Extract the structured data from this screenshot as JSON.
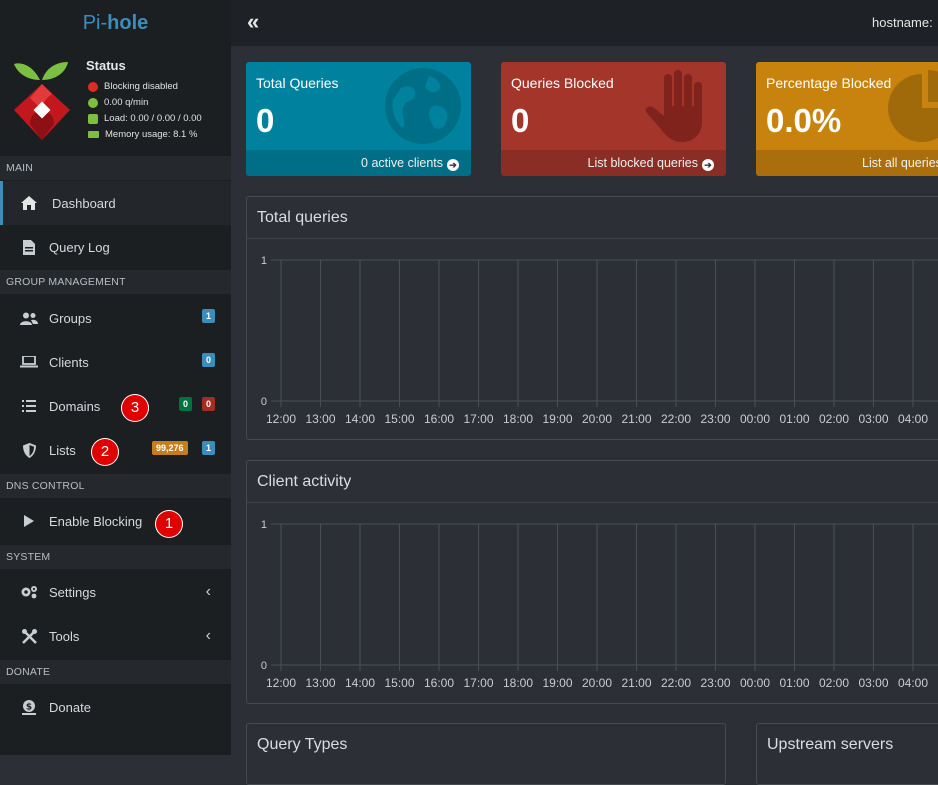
{
  "brand": {
    "prefix": "Pi-",
    "suffix": "hole"
  },
  "status": {
    "title": "Status",
    "blocking": "Blocking disabled",
    "rate": "0.00 q/min",
    "load": "Load: 0.00 / 0.00 / 0.00",
    "memory": "Memory usage: 8.1 %",
    "colors": {
      "blocking": "#dd2c22",
      "rate": "#7fbf3f",
      "load": "#7fbf3f",
      "memory": "#7fbf3f"
    }
  },
  "sidebar": {
    "sections": {
      "main": "MAIN",
      "group": "GROUP MANAGEMENT",
      "dns": "DNS CONTROL",
      "system": "SYSTEM",
      "donate": "DONATE"
    },
    "items": {
      "dashboard": "Dashboard",
      "querylog": "Query Log",
      "groups": "Groups",
      "clients": "Clients",
      "domains": "Domains",
      "lists": "Lists",
      "enable": "Enable Blocking",
      "settings": "Settings",
      "tools": "Tools",
      "donate": "Donate"
    },
    "badges": {
      "groups": "1",
      "clients": "0",
      "domains_allow": "0",
      "domains_deny": "0",
      "lists_count": "99,276",
      "lists": "1"
    },
    "markers": {
      "domains": "3",
      "lists": "2",
      "enable": "1"
    }
  },
  "topbar": {
    "collapse": "«",
    "hostname": "hostname:"
  },
  "stats": [
    {
      "title": "Total Queries",
      "value": "0",
      "footer": "0 active clients",
      "color": "#00829e",
      "icon": "globe-icon"
    },
    {
      "title": "Queries Blocked",
      "value": "0",
      "footer": "List blocked queries",
      "color": "#a3352b",
      "icon": "hand-icon"
    },
    {
      "title": "Percentage Blocked",
      "value": "0.0%",
      "footer": "List all queries",
      "color": "#c8830f",
      "icon": "pie-chart-icon"
    }
  ],
  "charts": {
    "total_queries": {
      "title": "Total queries"
    },
    "client_activity": {
      "title": "Client activity"
    }
  },
  "chart_data": [
    {
      "type": "area",
      "title": "Total queries",
      "x": [
        "12:00",
        "13:00",
        "14:00",
        "15:00",
        "16:00",
        "17:00",
        "18:00",
        "19:00",
        "20:00",
        "21:00",
        "22:00",
        "23:00",
        "00:00",
        "01:00",
        "02:00",
        "03:00",
        "04:00"
      ],
      "y_ticks": [
        "1",
        "0"
      ],
      "ylim": [
        0,
        1
      ],
      "grid": true
    },
    {
      "type": "area",
      "title": "Client activity",
      "x": [
        "12:00",
        "13:00",
        "14:00",
        "15:00",
        "16:00",
        "17:00",
        "18:00",
        "19:00",
        "20:00",
        "21:00",
        "22:00",
        "23:00",
        "00:00",
        "01:00",
        "02:00",
        "03:00",
        "04:00"
      ],
      "y_ticks": [
        "1",
        "0"
      ],
      "ylim": [
        0,
        1
      ],
      "grid": true
    }
  ],
  "lower": {
    "query_types": "Query Types",
    "upstream": "Upstream servers"
  }
}
